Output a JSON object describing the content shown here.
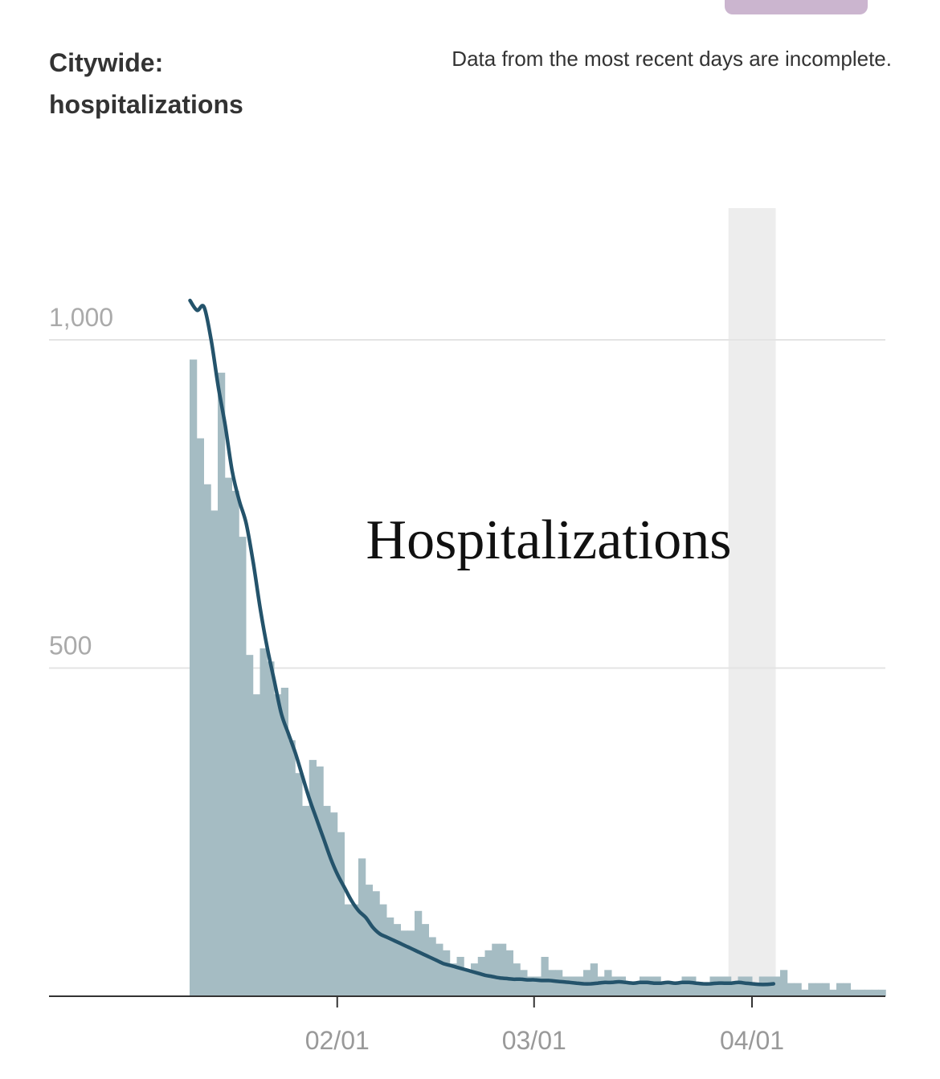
{
  "header": {
    "title": "Citywide: hospitalizations",
    "note": "Data from the most recent days are incomplete."
  },
  "colors": {
    "bars": "#a5bcc3",
    "line": "#24536b",
    "incomplete_band": "#ededed",
    "grid": "#e4e4e4",
    "axis": "#333333",
    "tick_text": "#999999",
    "pill": "#cbb5cf"
  },
  "chart_data": {
    "type": "bar",
    "title": "Citywide: hospitalizations",
    "annotation": "Hospitalizations",
    "yticks": [
      {
        "value": 500,
        "label": "500"
      },
      {
        "value": 1000,
        "label": "1,000"
      }
    ],
    "ylim": [
      0,
      1200
    ],
    "x_start": "2021-01-11",
    "x_end": "2021-04-03",
    "xticks": [
      {
        "date": "2021-02-01",
        "label": "02/01"
      },
      {
        "date": "2021-03-01",
        "label": "03/01"
      },
      {
        "date": "2021-04-01",
        "label": "04/01"
      }
    ],
    "incomplete_from": "2021-03-29",
    "grid": true,
    "series": [
      {
        "kind": "bar",
        "values": [
          970,
          850,
          780,
          740,
          950,
          790,
          770,
          700,
          520,
          460,
          530,
          510,
          460,
          470,
          390,
          340,
          290,
          360,
          350,
          290,
          280,
          250,
          140,
          140,
          210,
          170,
          160,
          140,
          120,
          110,
          100,
          100,
          130,
          110,
          90,
          80,
          70,
          50,
          60,
          40,
          50,
          60,
          70,
          80,
          80,
          70,
          50,
          40,
          30,
          30,
          60,
          40,
          40,
          30,
          30,
          30,
          40,
          50,
          30,
          40,
          30,
          30,
          20,
          20,
          30,
          30,
          30,
          20,
          20,
          20,
          30,
          30,
          20,
          20,
          30,
          30,
          30,
          20,
          30,
          30,
          20,
          30,
          30,
          30,
          40,
          20,
          20,
          10,
          20,
          20,
          20,
          10,
          20,
          20,
          10,
          10,
          10,
          10,
          10
        ]
      },
      {
        "kind": "line",
        "values": [
          1060,
          1045,
          1050,
          1000,
          930,
          870,
          800,
          755,
          720,
          660,
          590,
          530,
          480,
          430,
          400,
          370,
          335,
          300,
          270,
          240,
          210,
          185,
          165,
          145,
          130,
          120,
          105,
          95,
          90,
          85,
          80,
          75,
          70,
          65,
          60,
          55,
          50,
          47,
          44,
          41,
          38,
          35,
          32,
          30,
          28,
          27,
          26,
          26,
          25,
          25,
          24,
          24,
          23,
          22,
          21,
          20,
          19,
          19,
          20,
          21,
          21,
          22,
          21,
          20,
          21,
          21,
          20,
          20,
          21,
          20,
          21,
          21,
          20,
          19,
          19,
          20,
          20,
          20,
          21,
          20,
          19,
          18,
          18,
          19
        ]
      }
    ]
  }
}
